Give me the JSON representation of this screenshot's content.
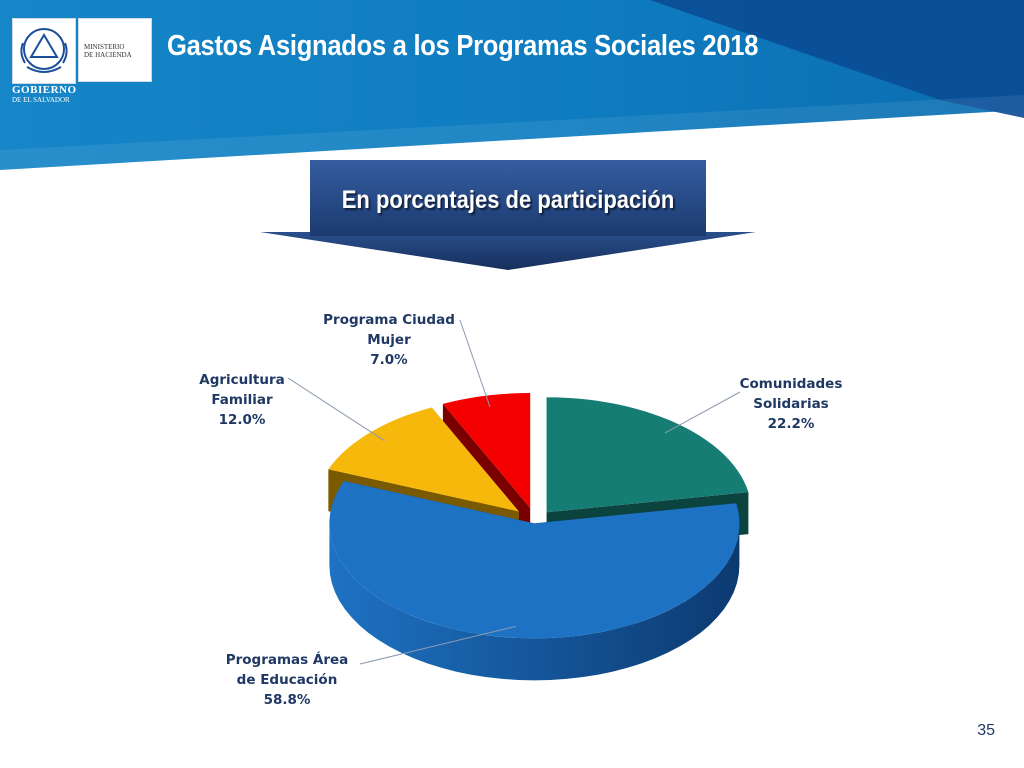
{
  "header": {
    "title": "Gastos Asignados a los Programas Sociales 2018",
    "logo": {
      "ministry_line1": "MINISTERIO",
      "ministry_line2": "DE HACIENDA",
      "gov_line1": "GOBIERNO",
      "gov_line2": "DE EL SALVADOR"
    }
  },
  "subtitle": "En porcentajes de participación",
  "page_number": "35",
  "colors": {
    "header_blue": "#0e7bbf",
    "header_dark_blue": "#0a4c95",
    "banner_top": "#2f5596",
    "banner_bottom": "#1b3a70"
  },
  "chart_data": {
    "type": "pie",
    "title": "",
    "slices": [
      {
        "label_lines": [
          "Comunidades",
          "Solidarias",
          "22.2%"
        ],
        "value": 22.2,
        "color": "#167d74",
        "dark": "#0b433e"
      },
      {
        "label_lines": [
          "Programas Área",
          "de Educación",
          "58.8%"
        ],
        "value": 58.8,
        "color": "#1e72c4",
        "dark": "#0c3a70"
      },
      {
        "label_lines": [
          "Agricultura",
          "Familiar",
          "12.0%"
        ],
        "value": 12.0,
        "color": "#f5b80b",
        "dark": "#7a5a00"
      },
      {
        "label_lines": [
          "Programa Ciudad",
          "Mujer",
          "7.0%"
        ],
        "value": 7.0,
        "color": "#f40000",
        "dark": "#7a0000"
      }
    ],
    "exploded": true,
    "style": "3d"
  }
}
